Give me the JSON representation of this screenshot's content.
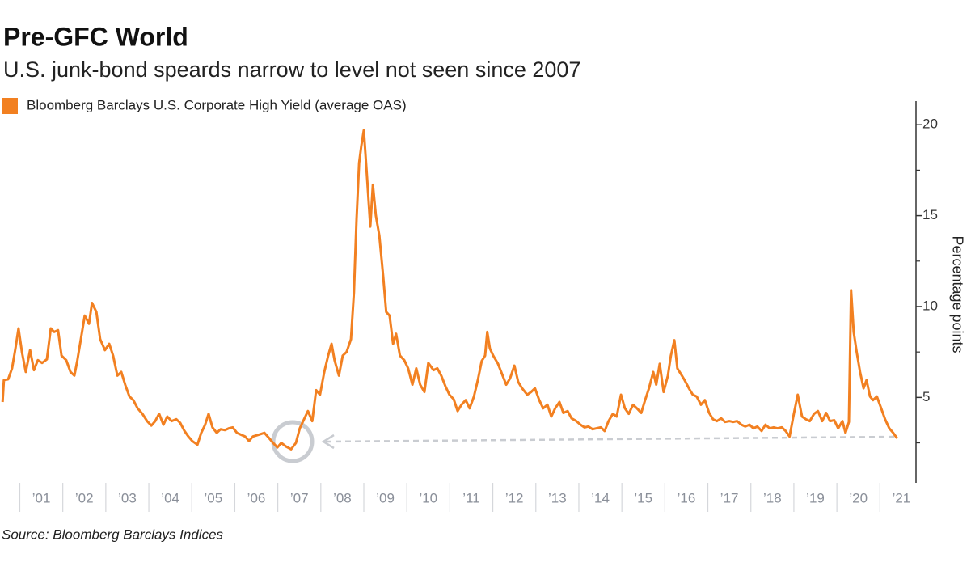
{
  "chart_data": {
    "type": "line",
    "title": "Pre-GFC World",
    "subtitle": "U.S. junk-bond speards narrow to level not seen since 2007",
    "y_axis_label": "Percentage points",
    "source": "Source: Bloomberg Barclays Indices",
    "x": [
      2000.6,
      2000.63,
      2000.73,
      2000.82,
      2000.9,
      2000.97,
      2001.05,
      2001.14,
      2001.24,
      2001.33,
      2001.42,
      2001.52,
      2001.63,
      2001.72,
      2001.8,
      2001.89,
      2001.97,
      2002.08,
      2002.18,
      2002.27,
      2002.34,
      2002.42,
      2002.51,
      2002.61,
      2002.68,
      2002.78,
      2002.87,
      2002.98,
      2003.08,
      2003.17,
      2003.27,
      2003.36,
      2003.45,
      2003.55,
      2003.64,
      2003.74,
      2003.85,
      2003.96,
      2004.06,
      2004.15,
      2004.24,
      2004.34,
      2004.43,
      2004.53,
      2004.64,
      2004.73,
      2004.83,
      2004.92,
      2005.01,
      2005.13,
      2005.22,
      2005.31,
      2005.39,
      2005.48,
      2005.58,
      2005.67,
      2005.77,
      2005.86,
      2005.95,
      2006.05,
      2006.14,
      2006.24,
      2006.33,
      2006.42,
      2006.56,
      2006.69,
      2006.8,
      2006.89,
      2006.99,
      2007.08,
      2007.19,
      2007.31,
      2007.42,
      2007.51,
      2007.61,
      2007.7,
      2007.8,
      2007.89,
      2007.98,
      2008.08,
      2008.17,
      2008.25,
      2008.32,
      2008.42,
      2008.51,
      2008.6,
      2008.7,
      2008.77,
      2008.83,
      2008.89,
      2008.94,
      2009.0,
      2009.07,
      2009.15,
      2009.21,
      2009.28,
      2009.36,
      2009.45,
      2009.52,
      2009.6,
      2009.68,
      2009.75,
      2009.84,
      2009.94,
      2010.03,
      2010.13,
      2010.22,
      2010.31,
      2010.41,
      2010.5,
      2010.62,
      2010.71,
      2010.8,
      2010.9,
      2010.99,
      2011.09,
      2011.18,
      2011.27,
      2011.37,
      2011.46,
      2011.56,
      2011.65,
      2011.74,
      2011.82,
      2011.87,
      2011.93,
      2012.01,
      2012.12,
      2012.21,
      2012.31,
      2012.4,
      2012.5,
      2012.59,
      2012.68,
      2012.8,
      2012.89,
      2012.98,
      2013.08,
      2013.17,
      2013.27,
      2013.36,
      2013.45,
      2013.55,
      2013.64,
      2013.74,
      2013.83,
      2013.94,
      2014.04,
      2014.13,
      2014.22,
      2014.32,
      2014.41,
      2014.51,
      2014.6,
      2014.69,
      2014.79,
      2014.88,
      2014.98,
      2015.07,
      2015.16,
      2015.26,
      2015.35,
      2015.45,
      2015.54,
      2015.63,
      2015.73,
      2015.8,
      2015.88,
      2015.97,
      2016.07,
      2016.14,
      2016.22,
      2016.29,
      2016.37,
      2016.46,
      2016.56,
      2016.65,
      2016.74,
      2016.84,
      2016.93,
      2017.03,
      2017.12,
      2017.21,
      2017.31,
      2017.4,
      2017.5,
      2017.59,
      2017.68,
      2017.78,
      2017.87,
      2017.97,
      2018.06,
      2018.15,
      2018.25,
      2018.34,
      2018.44,
      2018.53,
      2018.62,
      2018.72,
      2018.81,
      2018.9,
      2019.0,
      2019.09,
      2019.19,
      2019.28,
      2019.37,
      2019.47,
      2019.56,
      2019.66,
      2019.75,
      2019.84,
      2019.94,
      2020.03,
      2020.13,
      2020.2,
      2020.28,
      2020.33,
      2020.39,
      2020.46,
      2020.54,
      2020.62,
      2020.69,
      2020.77,
      2020.84,
      2020.93,
      2021.03,
      2021.12,
      2021.22,
      2021.31,
      2021.4
    ],
    "series": [
      {
        "name": "Bloomberg Barclays U.S. Corporate High Yield (average OAS)",
        "color": "#f28021",
        "values": [
          4.75,
          5.95,
          6.0,
          6.6,
          7.7,
          8.8,
          7.5,
          6.4,
          7.6,
          6.5,
          7.05,
          6.9,
          7.1,
          8.8,
          8.6,
          8.7,
          7.3,
          7.05,
          6.4,
          6.2,
          7.05,
          8.2,
          9.5,
          9.05,
          10.2,
          9.7,
          8.2,
          7.6,
          7.95,
          7.3,
          6.2,
          6.4,
          5.7,
          5.05,
          4.85,
          4.4,
          4.1,
          3.7,
          3.45,
          3.7,
          4.1,
          3.5,
          3.95,
          3.7,
          3.8,
          3.6,
          3.15,
          2.85,
          2.6,
          2.4,
          3.05,
          3.5,
          4.1,
          3.35,
          3.05,
          3.25,
          3.2,
          3.3,
          3.35,
          3.05,
          2.95,
          2.85,
          2.6,
          2.85,
          2.95,
          3.05,
          2.75,
          2.5,
          2.25,
          2.5,
          2.3,
          2.15,
          2.5,
          3.3,
          3.8,
          4.25,
          3.7,
          5.4,
          5.15,
          6.4,
          7.3,
          7.95,
          7.05,
          6.2,
          7.3,
          7.5,
          8.2,
          10.8,
          14.8,
          17.9,
          18.8,
          19.7,
          17.3,
          14.4,
          16.7,
          15.0,
          13.9,
          11.7,
          9.7,
          9.5,
          7.95,
          8.5,
          7.3,
          7.05,
          6.6,
          5.7,
          6.6,
          5.7,
          5.3,
          6.9,
          6.5,
          6.6,
          6.2,
          5.6,
          5.15,
          4.9,
          4.25,
          4.6,
          4.85,
          4.4,
          5.05,
          5.95,
          7.0,
          7.3,
          8.6,
          7.7,
          7.3,
          6.85,
          6.3,
          5.7,
          6.05,
          6.75,
          5.85,
          5.5,
          5.15,
          5.3,
          5.5,
          4.85,
          4.4,
          4.6,
          3.95,
          4.4,
          4.75,
          4.15,
          4.25,
          3.85,
          3.7,
          3.5,
          3.35,
          3.4,
          3.25,
          3.3,
          3.35,
          3.15,
          3.7,
          4.1,
          3.95,
          5.15,
          4.4,
          4.1,
          4.6,
          4.4,
          4.15,
          4.85,
          5.5,
          6.4,
          5.7,
          6.85,
          5.3,
          6.2,
          7.3,
          8.15,
          6.6,
          6.3,
          5.95,
          5.5,
          5.15,
          5.05,
          4.6,
          4.85,
          4.15,
          3.8,
          3.7,
          3.85,
          3.65,
          3.7,
          3.65,
          3.7,
          3.5,
          3.4,
          3.5,
          3.3,
          3.4,
          3.15,
          3.5,
          3.3,
          3.35,
          3.3,
          3.35,
          3.15,
          2.85,
          4.1,
          5.15,
          3.95,
          3.8,
          3.7,
          4.1,
          4.25,
          3.7,
          4.15,
          3.7,
          3.75,
          3.3,
          3.7,
          3.05,
          3.65,
          10.9,
          8.6,
          7.5,
          6.4,
          5.5,
          5.95,
          5.05,
          4.85,
          5.05,
          4.4,
          3.8,
          3.3,
          3.05,
          2.75
        ]
      }
    ],
    "xlim": [
      2000.54,
      2021.84
    ],
    "xticks": [
      {
        "value": 2001.5,
        "label": "’01"
      },
      {
        "value": 2002.5,
        "label": "’02"
      },
      {
        "value": 2003.5,
        "label": "’03"
      },
      {
        "value": 2004.5,
        "label": "’04"
      },
      {
        "value": 2005.5,
        "label": "’05"
      },
      {
        "value": 2006.5,
        "label": "’06"
      },
      {
        "value": 2007.5,
        "label": "’07"
      },
      {
        "value": 2008.5,
        "label": "’08"
      },
      {
        "value": 2009.5,
        "label": "’09"
      },
      {
        "value": 2010.5,
        "label": "’10"
      },
      {
        "value": 2011.5,
        "label": "’11"
      },
      {
        "value": 2012.5,
        "label": "’12"
      },
      {
        "value": 2013.5,
        "label": "’13"
      },
      {
        "value": 2014.5,
        "label": "’14"
      },
      {
        "value": 2015.5,
        "label": "’15"
      },
      {
        "value": 2016.5,
        "label": "’16"
      },
      {
        "value": 2017.5,
        "label": "’17"
      },
      {
        "value": 2018.5,
        "label": "’18"
      },
      {
        "value": 2019.5,
        "label": "’19"
      },
      {
        "value": 2020.5,
        "label": "’20"
      },
      {
        "value": 2021.5,
        "label": "’21"
      }
    ],
    "xtick_boundaries": [
      2001,
      2002,
      2003,
      2004,
      2005,
      2006,
      2007,
      2008,
      2009,
      2010,
      2011,
      2012,
      2013,
      2014,
      2015,
      2016,
      2017,
      2018,
      2019,
      2020,
      2021
    ],
    "ylim": [
      0.3,
      21.3
    ],
    "yticks": [
      5,
      10,
      15,
      20
    ],
    "yminor_ticks": [
      2.5,
      7.5,
      12.5,
      17.5
    ],
    "grid": false
  }
}
